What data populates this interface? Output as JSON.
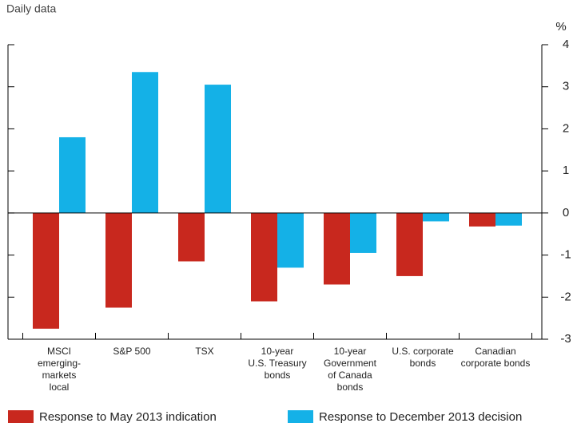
{
  "chart_data": {
    "type": "bar",
    "subtitle": "Daily data",
    "y_axis_label": "%",
    "categories": [
      [
        "MSCI",
        "emerging-",
        "markets",
        "local"
      ],
      [
        "S&P 500"
      ],
      [
        "TSX"
      ],
      [
        "10-year",
        "U.S. Treasury",
        "bonds"
      ],
      [
        "10-year",
        "Government",
        "of Canada",
        "bonds"
      ],
      [
        "U.S. corporate",
        "bonds"
      ],
      [
        "Canadian",
        "corporate bonds"
      ]
    ],
    "series": [
      {
        "name": "Response to May 2013 indication",
        "color": "#c8281e",
        "values": [
          -2.75,
          -2.25,
          -1.15,
          -2.1,
          -1.7,
          -1.5,
          -0.32
        ]
      },
      {
        "name": "Response to December 2013 decision",
        "color": "#14b1e7",
        "values": [
          1.8,
          3.35,
          3.05,
          -1.3,
          -0.95,
          -0.2,
          -0.3
        ]
      }
    ],
    "ylim": [
      -3,
      4
    ],
    "yticks": [
      -3,
      -2,
      -1,
      0,
      1,
      2,
      3,
      4
    ]
  }
}
